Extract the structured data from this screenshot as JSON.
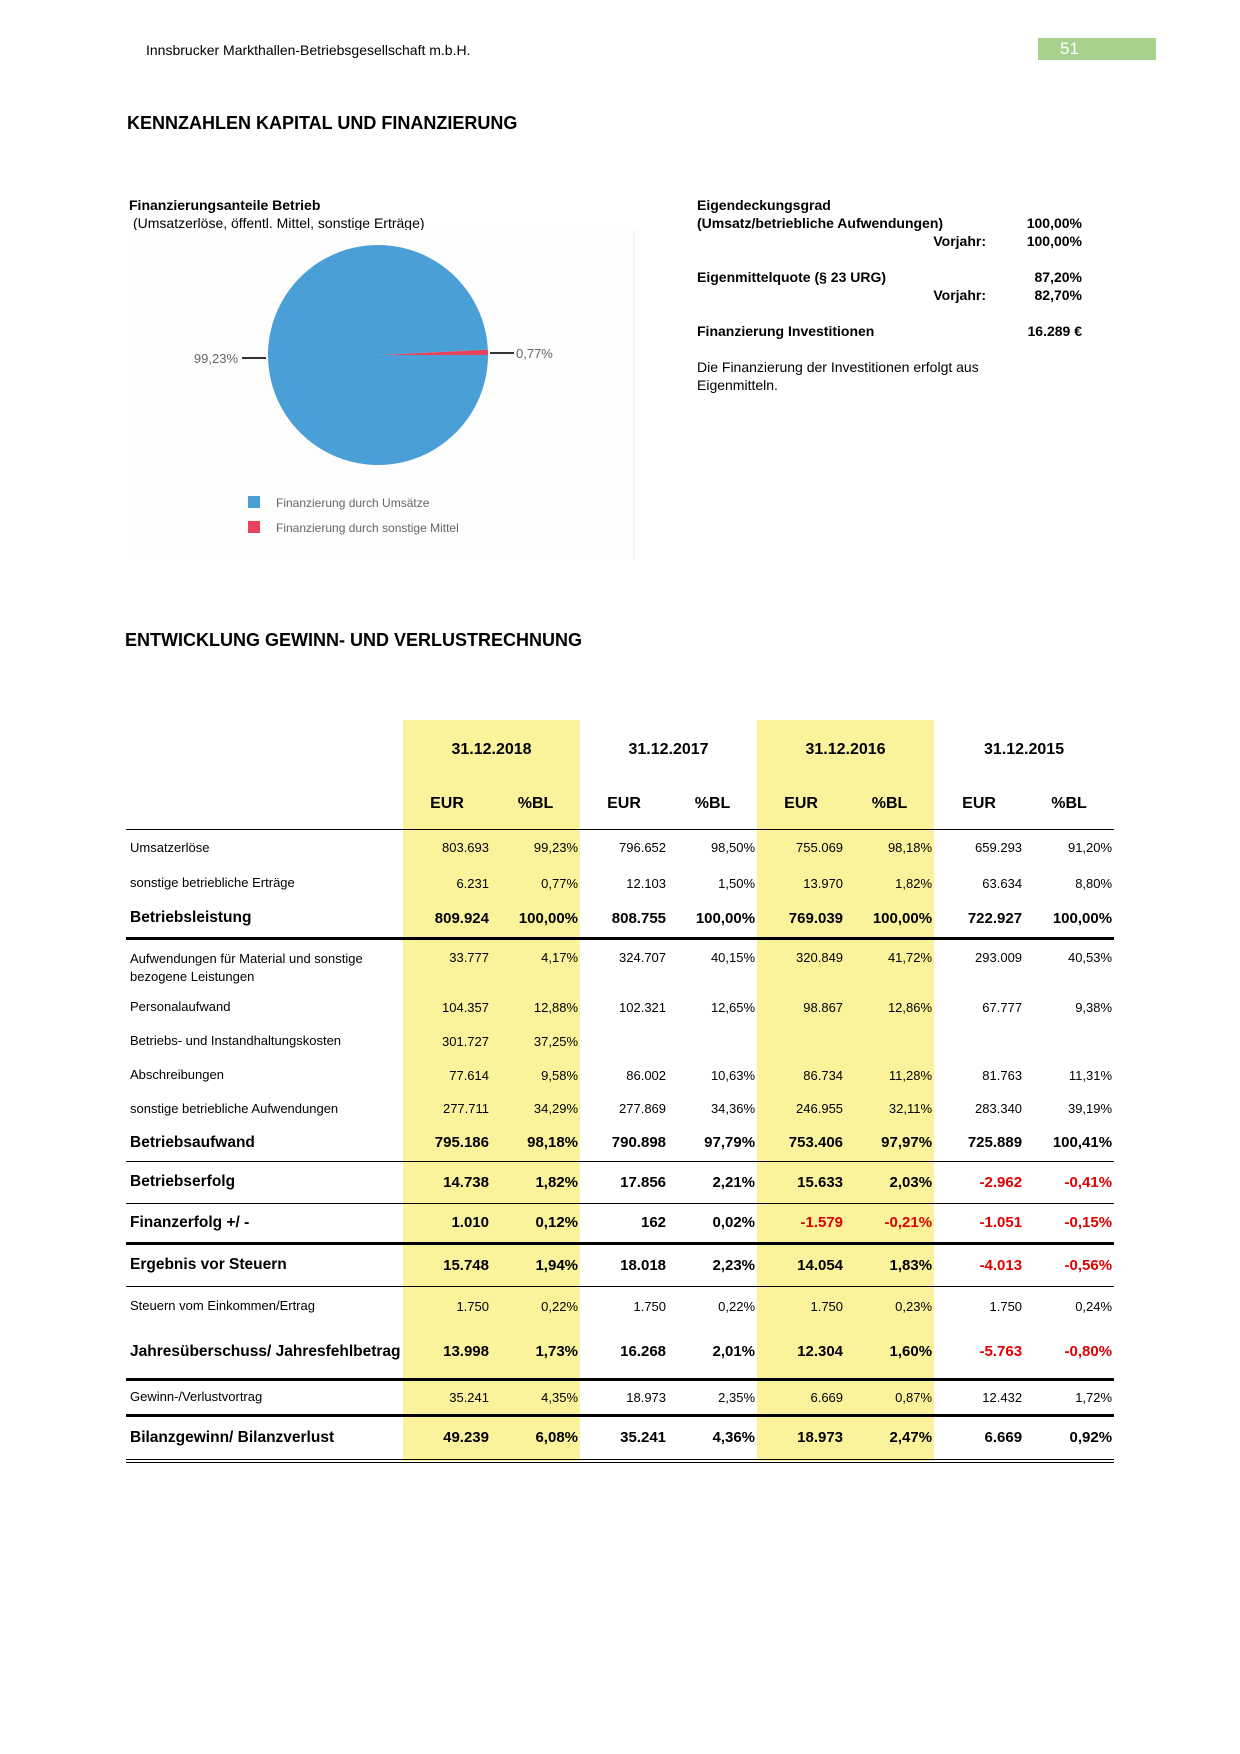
{
  "header": {
    "company": "Innsbrucker Markthallen-Betriebsgesellschaft m.b.H.",
    "page_number": "51",
    "page_color": "#a9d18e"
  },
  "section1": {
    "title": "KENNZAHLEN KAPITAL UND FINANZIERUNG",
    "chart_title": "Finanzierungsanteile Betrieb",
    "chart_subtitle": "(Umsatzerlöse, öffentl. Mittel, sonstige Erträge)",
    "kpis": {
      "eigendeckung_label": "Eigendeckungsgrad",
      "eigendeckung_sub": "(Umsatz/betriebliche Aufwendungen)",
      "eigendeckung_value": "100,00%",
      "vorjahr_label": "Vorjahr:",
      "eigendeckung_prev": "100,00%",
      "eigenmittel_label": "Eigenmittelquote (§ 23 URG)",
      "eigenmittel_value": "87,20%",
      "eigenmittel_prev": "82,70%",
      "invest_label": "Finanzierung Investitionen",
      "invest_value": "16.289 €",
      "note": "Die Finanzierung der Investitionen erfolgt aus Eigenmitteln."
    }
  },
  "chart_data": {
    "type": "pie",
    "title": "Finanzierungsanteile Betrieb",
    "slices": [
      {
        "label": "Finanzierung durch Umsätze",
        "value": 99.23,
        "data_label": "99,23%",
        "color": "#4a9fd6"
      },
      {
        "label": "Finanzierung durch sonstige Mittel",
        "value": 0.77,
        "data_label": "0,77%",
        "color": "#e8435a"
      }
    ],
    "legend": "bottom"
  },
  "section2": {
    "title": "ENTWICKLUNG GEWINN- UND VERLUSTRECHNUNG",
    "highlight_color": "#faf39b",
    "negative_color": "#e00000",
    "years": [
      "31.12.2018",
      "31.12.2017",
      "31.12.2016",
      "31.12.2015"
    ],
    "units": [
      "EUR",
      "%BL",
      "EUR",
      "%BL",
      "EUR",
      "%BL",
      "EUR",
      "%BL"
    ],
    "rows": [
      {
        "label": "Umsatzerlöse",
        "values": [
          "803.693",
          "99,23%",
          "796.652",
          "98,50%",
          "755.069",
          "98,18%",
          "659.293",
          "91,20%"
        ]
      },
      {
        "label": "sonstige betriebliche Erträge",
        "values": [
          "6.231",
          "0,77%",
          "12.103",
          "1,50%",
          "13.970",
          "1,82%",
          "63.634",
          "8,80%"
        ]
      },
      {
        "label": "Betriebsleistung",
        "bold": true,
        "values": [
          "809.924",
          "100,00%",
          "808.755",
          "100,00%",
          "769.039",
          "100,00%",
          "722.927",
          "100,00%"
        ]
      },
      {
        "label": "Aufwendungen für Material und sonstige bezogene Leistungen",
        "values": [
          "33.777",
          "4,17%",
          "324.707",
          "40,15%",
          "320.849",
          "41,72%",
          "293.009",
          "40,53%"
        ]
      },
      {
        "label": "Personalaufwand",
        "values": [
          "104.357",
          "12,88%",
          "102.321",
          "12,65%",
          "98.867",
          "12,86%",
          "67.777",
          "9,38%"
        ]
      },
      {
        "label": "Betriebs- und Instandhaltungskosten",
        "values": [
          "301.727",
          "37,25%",
          "",
          "",
          "",
          "",
          "",
          ""
        ]
      },
      {
        "label": "Abschreibungen",
        "values": [
          "77.614",
          "9,58%",
          "86.002",
          "10,63%",
          "86.734",
          "11,28%",
          "81.763",
          "11,31%"
        ]
      },
      {
        "label": "sonstige betriebliche Aufwendungen",
        "values": [
          "277.711",
          "34,29%",
          "277.869",
          "34,36%",
          "246.955",
          "32,11%",
          "283.340",
          "39,19%"
        ]
      },
      {
        "label": "Betriebsaufwand",
        "bold": true,
        "values": [
          "795.186",
          "98,18%",
          "790.898",
          "97,79%",
          "753.406",
          "97,97%",
          "725.889",
          "100,41%"
        ]
      },
      {
        "label": "Betriebserfolg",
        "bold": true,
        "values": [
          "14.738",
          "1,82%",
          "17.856",
          "2,21%",
          "15.633",
          "2,03%",
          "-2.962",
          "-0,41%"
        ]
      },
      {
        "label": "Finanzerfolg +/ -",
        "bold": true,
        "values": [
          "1.010",
          "0,12%",
          "162",
          "0,02%",
          "-1.579",
          "-0,21%",
          "-1.051",
          "-0,15%"
        ]
      },
      {
        "label": "Ergebnis vor Steuern",
        "bold": true,
        "values": [
          "15.748",
          "1,94%",
          "18.018",
          "2,23%",
          "14.054",
          "1,83%",
          "-4.013",
          "-0,56%"
        ]
      },
      {
        "label": "Steuern vom Einkommen/Ertrag",
        "values": [
          "1.750",
          "0,22%",
          "1.750",
          "0,22%",
          "1.750",
          "0,23%",
          "1.750",
          "0,24%"
        ]
      },
      {
        "label": "Jahresüberschuss/ Jahresfehlbetrag",
        "bold": true,
        "values": [
          "13.998",
          "1,73%",
          "16.268",
          "2,01%",
          "12.304",
          "1,60%",
          "-5.763",
          "-0,80%"
        ]
      },
      {
        "label": "Gewinn-/Verlustvortrag",
        "values": [
          "35.241",
          "4,35%",
          "18.973",
          "2,35%",
          "6.669",
          "0,87%",
          "12.432",
          "1,72%"
        ]
      },
      {
        "label": "Bilanzgewinn/ Bilanzverlust",
        "bold": true,
        "values": [
          "49.239",
          "6,08%",
          "35.241",
          "4,36%",
          "18.973",
          "2,47%",
          "6.669",
          "0,92%"
        ]
      }
    ]
  }
}
